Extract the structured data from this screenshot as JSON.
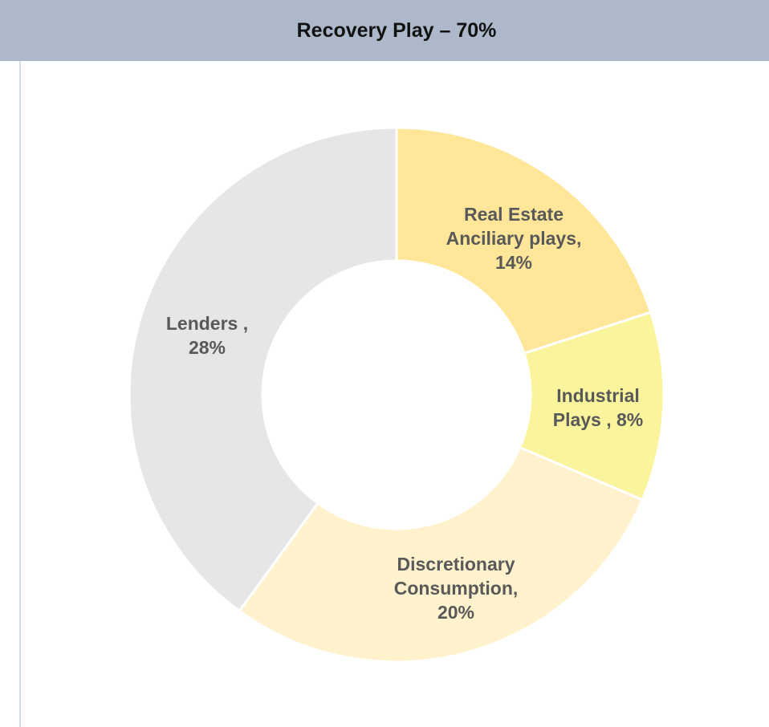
{
  "chart_data": {
    "type": "pie",
    "title": "Recovery Play – 70%",
    "labels": [
      "Real Estate Anciliary plays, 14%",
      "Industrial Plays , 8%",
      "Discretionary Consumption, 20%",
      "Lenders , 28%"
    ],
    "values": [
      14,
      8,
      20,
      28
    ],
    "colors": [
      "#ffe699",
      "#faf59d",
      "#fff2cc",
      "#e6e6e6"
    ],
    "donut": true
  }
}
